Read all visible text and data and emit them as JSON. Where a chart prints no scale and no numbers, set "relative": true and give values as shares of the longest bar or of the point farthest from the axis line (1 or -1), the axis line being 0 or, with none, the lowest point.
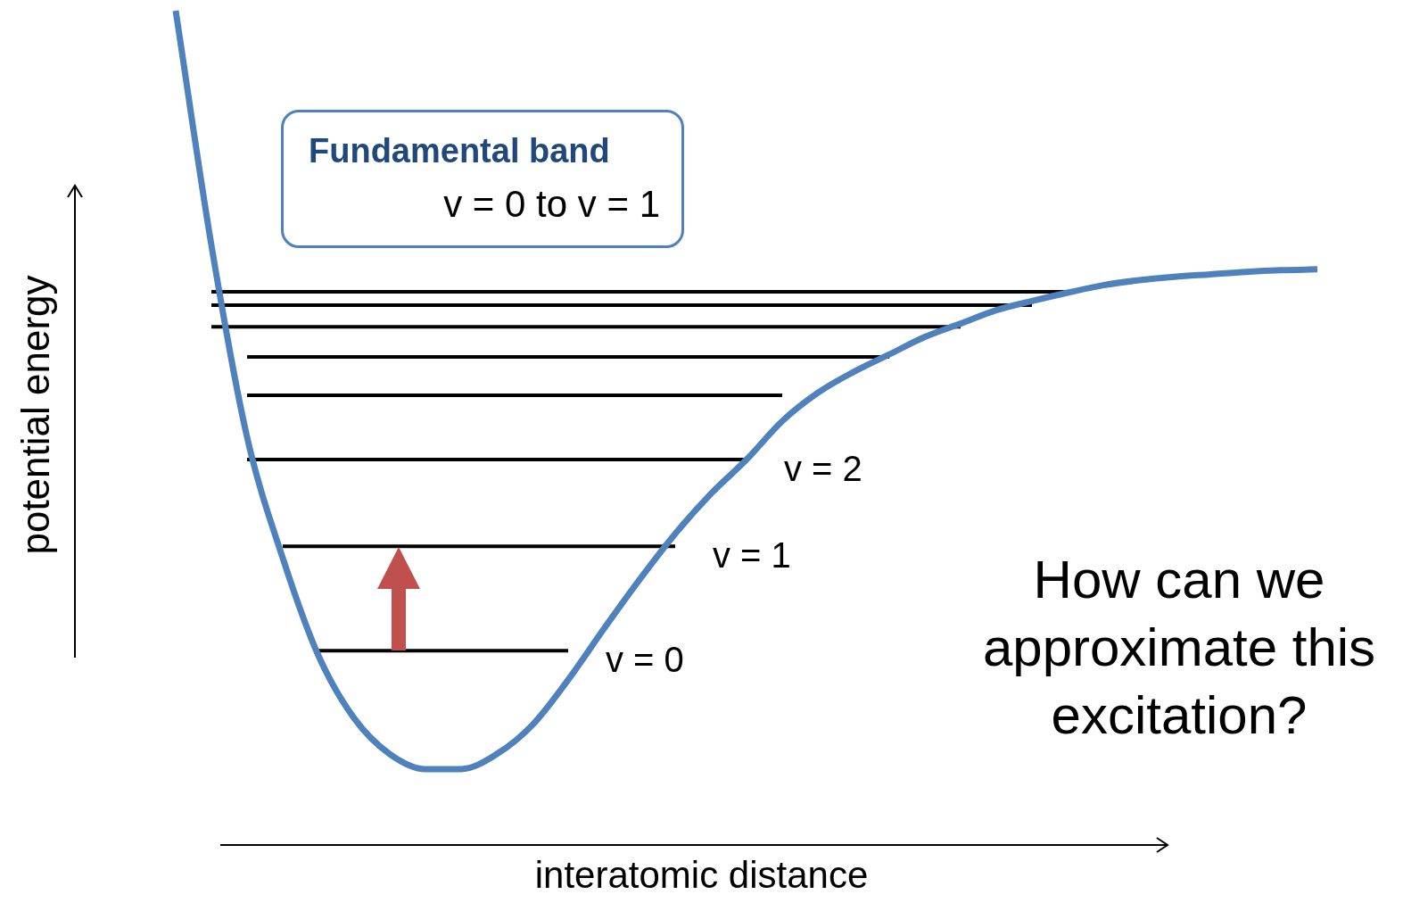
{
  "chart_data": {
    "type": "line",
    "relative": true,
    "xlabel": "interatomic distance",
    "ylabel": "potential energy",
    "legend": false,
    "marker": "none",
    "line_style": "solid",
    "categories": [
      null,
      null,
      null,
      null,
      null,
      null,
      null,
      null,
      null,
      null,
      null,
      null,
      null,
      null,
      null,
      null,
      null,
      null,
      null,
      null,
      null,
      null,
      null,
      null,
      null,
      null,
      null,
      null,
      null,
      null,
      null,
      null,
      null
    ],
    "series": [
      {
        "color": "#4f81bd",
        "values": [
          1,
          0.719,
          0.489,
          0.344,
          0.227,
          0.152,
          0.109,
          0.091,
          0.091,
          0.109,
          0.144,
          0.198,
          0.259,
          0.318,
          0.373,
          0.421,
          0.462,
          0.508,
          0.542,
          0.567,
          0.588,
          0.609,
          0.625,
          0.641,
          0.652,
          0.662,
          0.671,
          0.677,
          0.681,
          0.684,
          0.687,
          0.689,
          0.69
        ]
      },
      {
        "color": "#000000",
        "values": [
          null,
          0.663,
          0.663,
          0.663,
          0.663,
          0.663,
          0.663,
          0.663,
          0.663,
          0.663,
          0.663,
          0.663,
          0.663,
          0.663,
          0.663,
          0.663,
          0.663,
          0.663,
          0.663,
          0.663,
          0.663,
          0.663,
          0.663,
          0.663,
          0.663,
          0.663,
          null,
          null,
          null,
          null,
          null,
          null,
          null
        ]
      },
      {
        "color": "#000000",
        "values": [
          null,
          0.647,
          0.647,
          0.647,
          0.647,
          0.647,
          0.647,
          0.647,
          0.647,
          0.647,
          0.647,
          0.647,
          0.647,
          0.647,
          0.647,
          0.647,
          0.647,
          0.647,
          0.647,
          0.647,
          0.647,
          0.647,
          0.647,
          0.647,
          0.647,
          null,
          null,
          null,
          null,
          null,
          null,
          null,
          null
        ]
      },
      {
        "color": "#000000",
        "values": [
          null,
          0.621,
          0.621,
          0.621,
          0.621,
          0.621,
          0.621,
          0.621,
          0.621,
          0.621,
          0.621,
          0.621,
          0.621,
          0.621,
          0.621,
          0.621,
          0.621,
          0.621,
          0.621,
          0.621,
          0.621,
          0.621,
          0.621,
          null,
          null,
          null,
          null,
          null,
          null,
          null,
          null,
          null,
          null
        ]
      },
      {
        "color": "#000000",
        "values": [
          null,
          null,
          0.585,
          0.585,
          0.585,
          0.585,
          0.585,
          0.585,
          0.585,
          0.585,
          0.585,
          0.585,
          0.585,
          0.585,
          0.585,
          0.585,
          0.585,
          0.585,
          0.585,
          0.585,
          0.585,
          null,
          null,
          null,
          null,
          null,
          null,
          null,
          null,
          null,
          null,
          null,
          null
        ]
      },
      {
        "color": "#000000",
        "values": [
          null,
          null,
          0.539,
          0.539,
          0.539,
          0.539,
          0.539,
          0.539,
          0.539,
          0.539,
          0.539,
          0.539,
          0.539,
          0.539,
          0.539,
          0.539,
          0.539,
          0.539,
          null,
          null,
          null,
          null,
          null,
          null,
          null,
          null,
          null,
          null,
          null,
          null,
          null,
          null,
          null
        ]
      },
      {
        "name": "v = 2",
        "color": "#000000",
        "values": [
          null,
          null,
          0.462,
          0.462,
          0.462,
          0.462,
          0.462,
          0.462,
          0.462,
          0.462,
          0.462,
          0.462,
          0.462,
          0.462,
          0.462,
          0.462,
          0.462,
          null,
          null,
          null,
          null,
          null,
          null,
          null,
          null,
          null,
          null,
          null,
          null,
          null,
          null,
          null,
          null
        ]
      },
      {
        "name": "v = 1",
        "color": "#000000",
        "values": [
          null,
          null,
          null,
          0.358,
          0.358,
          0.358,
          0.358,
          0.358,
          0.358,
          0.358,
          0.358,
          0.358,
          0.358,
          0.358,
          0.358,
          null,
          null,
          null,
          null,
          null,
          null,
          null,
          null,
          null,
          null,
          null,
          null,
          null,
          null,
          null,
          null,
          null,
          null
        ]
      },
      {
        "name": "v = 0",
        "color": "#000000",
        "values": [
          null,
          null,
          null,
          null,
          0.233,
          0.233,
          0.233,
          0.233,
          0.233,
          0.233,
          0.233,
          0.233,
          null,
          null,
          null,
          null,
          null,
          null,
          null,
          null,
          null,
          null,
          null,
          null,
          null,
          null,
          null,
          null,
          null,
          null,
          null,
          null,
          null
        ]
      }
    ],
    "annotations": [
      "Fundamental band",
      "v = 0 to v = 1",
      "How can we approximate this excitation?"
    ]
  }
}
